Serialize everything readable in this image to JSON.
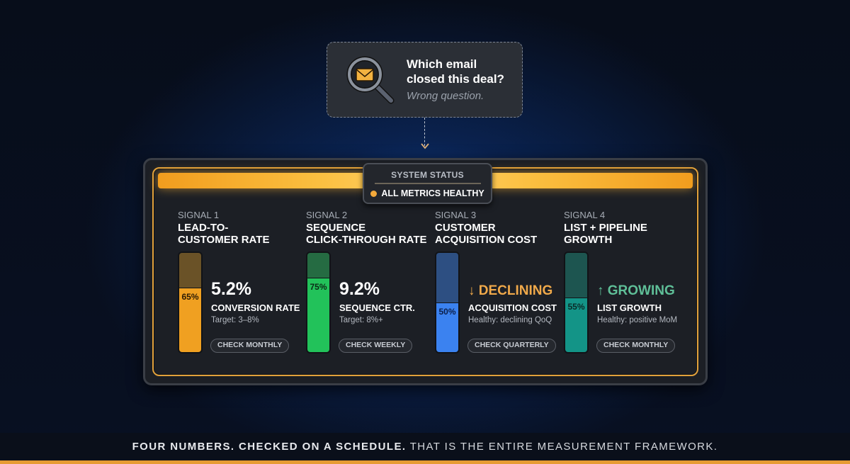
{
  "question_card": {
    "icon": "magnifier-envelope-icon",
    "question_line1": "Which email",
    "question_line2": "closed this deal?",
    "subtitle": "Wrong question."
  },
  "status": {
    "title": "SYSTEM STATUS",
    "value": "ALL METRICS HEALTHY",
    "dot_color": "#f3a93b"
  },
  "signals": [
    {
      "label": "SIGNAL 1",
      "title": "LEAD-TO-\nCUSTOMER RATE",
      "fill_pct": 65,
      "pct_label": "65%",
      "big_value": "5.2%",
      "metric": "CONVERSION RATE",
      "target": "Target: 3–8%",
      "check": "CHECK MONTHLY",
      "fill_color": "#f0a021",
      "empty_color": "#6a5227",
      "pct_color": "#2a1a05",
      "big_color": "#ffffff"
    },
    {
      "label": "SIGNAL 2",
      "title": "SEQUENCE\nCLICK-THROUGH RATE",
      "fill_pct": 75,
      "pct_label": "75%",
      "big_value": "9.2%",
      "metric": "SEQUENCE CTR.",
      "target": "Target: 8%+",
      "check": "CHECK WEEKLY",
      "fill_color": "#22c25a",
      "empty_color": "#256b42",
      "pct_color": "#0b2a15",
      "big_color": "#ffffff"
    },
    {
      "label": "SIGNAL 3",
      "title": "CUSTOMER\nACQUISITION COST",
      "fill_pct": 50,
      "pct_label": "50%",
      "big_value": "↓ DECLINING",
      "metric": "ACQUISITION COST",
      "target": "Healthy: declining QoQ",
      "check": "CHECK QUARTERLY",
      "fill_color": "#3b82f0",
      "empty_color": "#2d4f82",
      "pct_color": "#0b1f4a",
      "big_color": "#f0a94a"
    },
    {
      "label": "SIGNAL 4",
      "title": "LIST + PIPELINE\nGROWTH",
      "fill_pct": 55,
      "pct_label": "55%",
      "big_value": "↑ GROWING",
      "metric": "LIST GROWTH",
      "target": "Healthy: positive MoM",
      "check": "CHECK MONTHLY",
      "fill_color": "#139487",
      "empty_color": "#1d5550",
      "pct_color": "#0a2a27",
      "big_color": "#5fbf98"
    }
  ],
  "footer": {
    "bold": "FOUR NUMBERS. CHECKED ON A SCHEDULE.",
    "light": " THAT IS THE ENTIRE MEASUREMENT FRAMEWORK."
  },
  "colors": {
    "accent_orange": "#e69b32",
    "panel_bg": "#1c1f25",
    "background": "#070e1c"
  }
}
